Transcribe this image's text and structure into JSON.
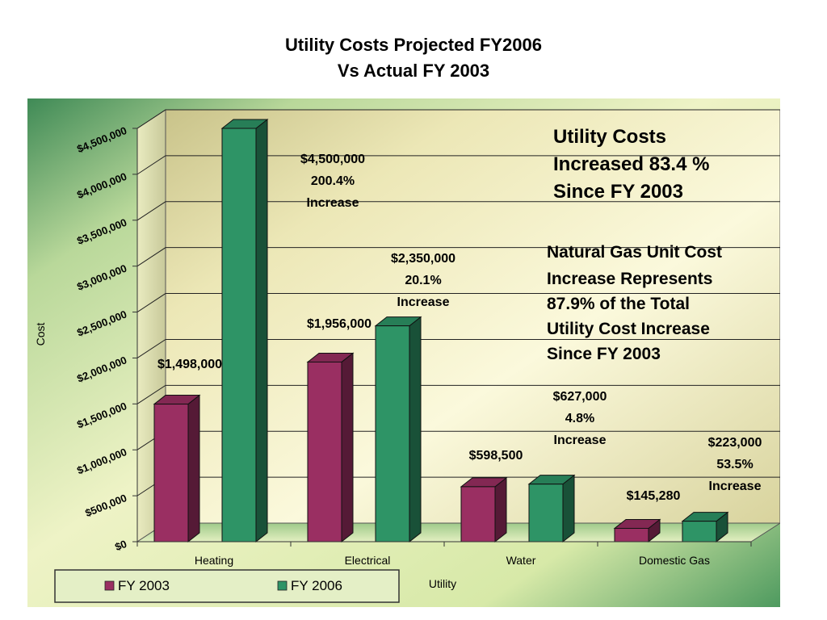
{
  "title": {
    "line1": "Utility Costs Projected FY2006",
    "line2": "Vs Actual FY 2003"
  },
  "colors": {
    "fy2003": "#9a2f62",
    "fy2006": "#2e9466",
    "plot_bg": "#f4f1c9",
    "outer_bg_light": "#eef3c6",
    "outer_bg_dark": "#3f8a56"
  },
  "chart_data": {
    "type": "bar",
    "categories": [
      "Heating",
      "Electrical",
      "Water",
      "Domestic Gas"
    ],
    "series": [
      {
        "name": "FY 2003",
        "values": [
          1498000,
          1956000,
          598500,
          145280
        ]
      },
      {
        "name": "FY 2006",
        "values": [
          4500000,
          2350000,
          627000,
          223000
        ]
      }
    ],
    "xlabel": "Utility",
    "ylabel": "Cost",
    "ylim": [
      0,
      4500000
    ],
    "yticks": [
      "$0",
      "$500,000",
      "$1,000,000",
      "$1,500,000",
      "$2,000,000",
      "$2,500,000",
      "$3,000,000",
      "$3,500,000",
      "$4,000,000",
      "$4,500,000"
    ],
    "grid": true,
    "legend_position": "bottom-left",
    "data_labels": {
      "fy2003": [
        "$1,498,000",
        "$1,956,000",
        "$598,500",
        "$145,280"
      ],
      "fy2006": [
        [
          "$4,500,000",
          "200.4%",
          "Increase"
        ],
        [
          "$2,350,000",
          "20.1%",
          "Increase"
        ],
        [
          "$627,000",
          "4.8%",
          "Increase"
        ],
        [
          "$223,000",
          "53.5%",
          "Increase"
        ]
      ]
    },
    "annotations": {
      "total": [
        "Utility Costs",
        "Increased 83.4 %",
        "Since FY 2003"
      ],
      "gas": [
        "Natural Gas Unit Cost",
        "Increase Represents",
        "87.9% of the Total",
        "Utility Cost Increase",
        "Since FY 2003"
      ]
    }
  }
}
